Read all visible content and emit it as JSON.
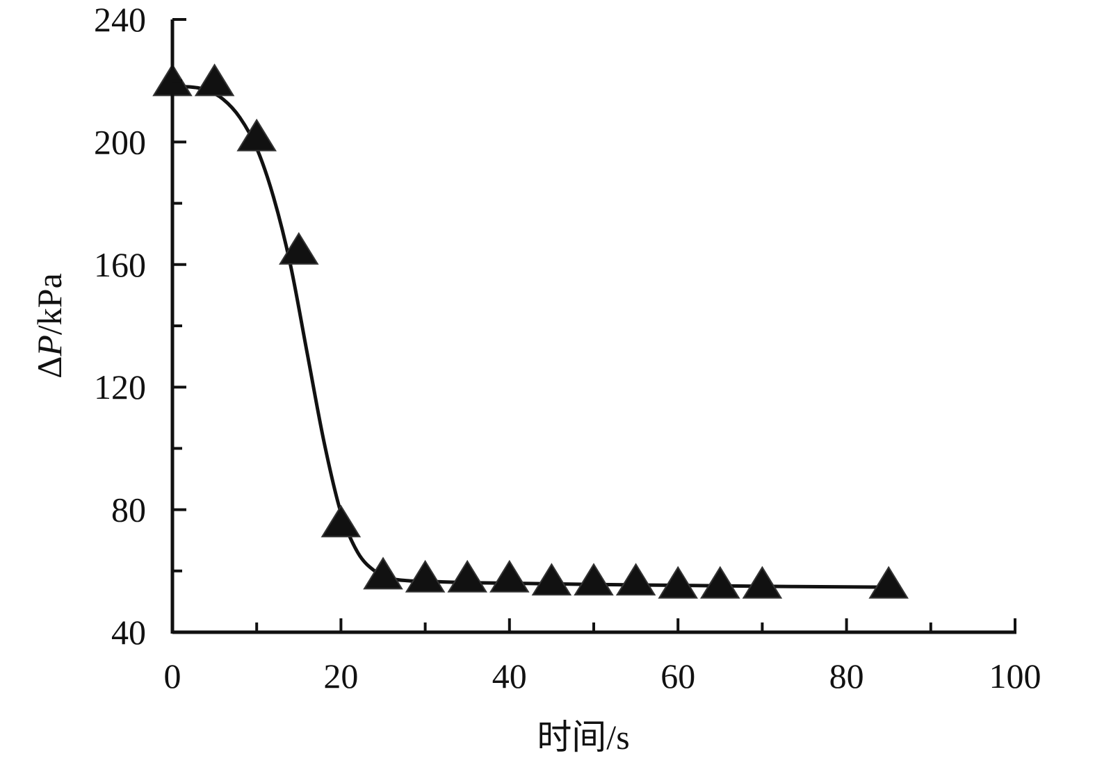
{
  "chart_data": {
    "type": "scatter",
    "xlabel": "时间/s",
    "ylabel": {
      "prefix": "Δ",
      "italic": "P",
      "suffix": "/kPa"
    },
    "xlim": [
      0,
      100
    ],
    "ylim": [
      40,
      240
    ],
    "x_ticks": [
      0,
      20,
      40,
      60,
      80,
      100
    ],
    "y_ticks": [
      40,
      80,
      120,
      160,
      200,
      240
    ],
    "x_minor_ticks": [
      10,
      30,
      50,
      70,
      90
    ],
    "y_minor_ticks": [
      60,
      100,
      140,
      180,
      220
    ],
    "grid": false,
    "series": [
      {
        "marker": "triangle",
        "color": "#111111",
        "x": [
          0,
          5,
          10,
          15,
          20,
          25,
          30,
          35,
          40,
          45,
          50,
          55,
          60,
          65,
          70,
          85
        ],
        "y": [
          219,
          219,
          201,
          164,
          75,
          58,
          57,
          57,
          57,
          56,
          56,
          56,
          55,
          55,
          55,
          55
        ]
      }
    ],
    "fit_curve": {
      "color": "#111111",
      "x": [
        0,
        2,
        4,
        6,
        8,
        10,
        12,
        14,
        16,
        18,
        20,
        22,
        24,
        26,
        28,
        30,
        35,
        40,
        50,
        60,
        70,
        80,
        85
      ],
      "y": [
        218,
        218,
        217,
        214,
        208,
        198,
        182,
        160,
        131,
        102,
        79,
        66,
        60,
        57.5,
        56.8,
        56.6,
        56.2,
        56,
        55.6,
        55.3,
        55,
        54.8,
        54.7
      ]
    }
  }
}
